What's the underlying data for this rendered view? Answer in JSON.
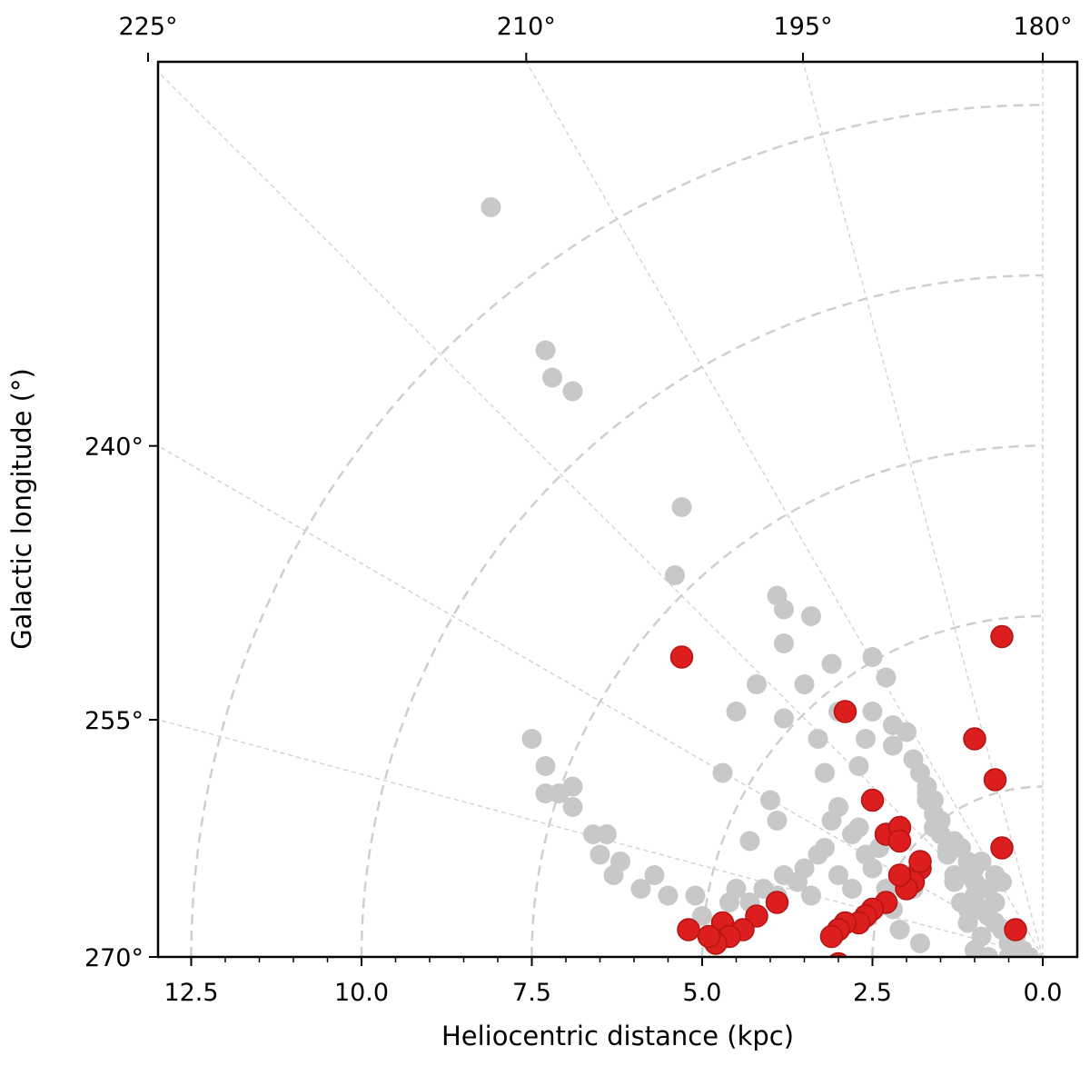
{
  "chart_data": {
    "type": "scatter",
    "title": "",
    "xlabel": "Heliocentric distance (kpc)",
    "ylabel": "Galactic longitude (°)",
    "xlim": [
      13.0,
      -0.6
    ],
    "x_ticks": [
      12.5,
      10.0,
      7.5,
      5.0,
      2.5,
      0.0
    ],
    "x_tick_labels": [
      "12.5",
      "10.0",
      "7.5",
      "5.0",
      "2.5",
      "0.0"
    ],
    "top_ticks": [
      225,
      210,
      195,
      180
    ],
    "top_tick_labels": [
      "225°",
      "210°",
      "195°",
      "180°"
    ],
    "left_ticks": [
      240,
      255,
      270
    ],
    "left_tick_labels": [
      "240°",
      "255°",
      "270°"
    ],
    "radial_gridlines_deg": [
      195,
      210,
      225,
      240,
      255
    ],
    "arc_gridlines_kpc": [
      2.5,
      5.0,
      7.5,
      10.0,
      12.5
    ],
    "minor_tick_step_kpc": 0.5,
    "grid": true,
    "series": [
      {
        "color": "#c8c8c8",
        "points": [
          [
            8.1,
            11.0
          ],
          [
            7.3,
            8.9
          ],
          [
            7.2,
            8.5
          ],
          [
            6.9,
            8.3
          ],
          [
            5.3,
            6.6
          ],
          [
            5.4,
            5.6
          ],
          [
            3.8,
            5.1
          ],
          [
            3.1,
            4.3
          ],
          [
            2.5,
            4.4
          ],
          [
            2.5,
            3.6
          ],
          [
            2.3,
            4.1
          ],
          [
            2.2,
            3.4
          ],
          [
            2.0,
            3.3
          ],
          [
            2.2,
            3.1
          ],
          [
            1.9,
            2.9
          ],
          [
            1.8,
            2.7
          ],
          [
            1.7,
            2.5
          ],
          [
            1.7,
            2.4
          ],
          [
            1.7,
            2.3
          ],
          [
            1.6,
            2.3
          ],
          [
            1.5,
            2.0
          ],
          [
            1.6,
            2.1
          ],
          [
            1.6,
            1.9
          ],
          [
            1.5,
            1.8
          ],
          [
            1.4,
            1.6
          ],
          [
            1.4,
            1.5
          ],
          [
            1.3,
            1.7
          ],
          [
            1.3,
            1.2
          ],
          [
            1.2,
            1.6
          ],
          [
            1.1,
            1.4
          ],
          [
            1.1,
            1.2
          ],
          [
            1.0,
            1.3
          ],
          [
            1.0,
            1.1
          ],
          [
            0.9,
            1.0
          ],
          [
            0.9,
            1.4
          ],
          [
            0.9,
            0.7
          ],
          [
            0.8,
            0.6
          ],
          [
            0.7,
            0.8
          ],
          [
            0.7,
            0.5
          ],
          [
            0.6,
            0.4
          ],
          [
            0.5,
            0.2
          ],
          [
            0.5,
            0.0
          ],
          [
            0.4,
            0.3
          ],
          [
            0.3,
            0.1
          ],
          [
            0.2,
            0.0
          ],
          [
            0.4,
            -0.1
          ],
          [
            0.6,
            1.1
          ],
          [
            0.7,
            1.2
          ],
          [
            0.8,
            1.0
          ],
          [
            1.0,
            0.9
          ],
          [
            1.1,
            0.7
          ],
          [
            1.2,
            0.8
          ],
          [
            1.3,
            1.1
          ],
          [
            1.1,
            0.5
          ],
          [
            0.9,
            0.3
          ],
          [
            1.0,
            0.1
          ],
          [
            0.8,
            0.0
          ],
          [
            0.9,
            -0.1
          ],
          [
            1.0,
            -0.2
          ],
          [
            1.1,
            -0.3
          ],
          [
            0.7,
            -0.2
          ],
          [
            0.5,
            -0.5
          ],
          [
            0.2,
            -0.2
          ],
          [
            1.3,
            -0.5
          ],
          [
            1.8,
            0.2
          ],
          [
            2.1,
            0.4
          ],
          [
            2.2,
            0.7
          ],
          [
            2.3,
            1.0
          ],
          [
            2.1,
            1.2
          ],
          [
            2.5,
            1.3
          ],
          [
            2.6,
            1.5
          ],
          [
            2.4,
            1.6
          ],
          [
            2.7,
            1.9
          ],
          [
            2.8,
            1.8
          ],
          [
            3.0,
            2.2
          ],
          [
            3.1,
            2.0
          ],
          [
            3.2,
            1.6
          ],
          [
            3.0,
            1.2
          ],
          [
            2.8,
            1.0
          ],
          [
            3.3,
            1.5
          ],
          [
            3.5,
            1.3
          ],
          [
            3.6,
            1.1
          ],
          [
            3.4,
            0.9
          ],
          [
            3.8,
            1.2
          ],
          [
            3.9,
            0.9
          ],
          [
            4.1,
            1.0
          ],
          [
            4.3,
            0.8
          ],
          [
            4.5,
            1.0
          ],
          [
            4.6,
            0.8
          ],
          [
            5.0,
            0.6
          ],
          [
            5.1,
            0.9
          ],
          [
            5.5,
            0.9
          ],
          [
            5.7,
            1.2
          ],
          [
            5.9,
            1.0
          ],
          [
            6.2,
            1.4
          ],
          [
            6.3,
            1.2
          ],
          [
            6.5,
            1.5
          ],
          [
            6.4,
            1.8
          ],
          [
            6.6,
            1.8
          ],
          [
            6.9,
            2.2
          ],
          [
            6.9,
            2.5
          ],
          [
            7.1,
            2.4
          ],
          [
            7.3,
            2.4
          ],
          [
            7.3,
            2.8
          ],
          [
            7.5,
            3.2
          ],
          [
            3.9,
            2.0
          ],
          [
            4.0,
            2.3
          ],
          [
            4.3,
            1.7
          ],
          [
            4.7,
            2.7
          ],
          [
            4.5,
            3.6
          ],
          [
            4.2,
            4.0
          ],
          [
            3.8,
            4.6
          ],
          [
            3.9,
            5.3
          ],
          [
            3.4,
            5.0
          ],
          [
            3.5,
            4.0
          ],
          [
            3.8,
            3.5
          ],
          [
            3.3,
            3.2
          ],
          [
            3.0,
            3.6
          ],
          [
            2.7,
            2.8
          ],
          [
            2.6,
            3.2
          ],
          [
            3.2,
            2.7
          ],
          [
            1.9,
            1.0
          ]
        ]
      },
      {
        "color": "#dc1e1e",
        "points": [
          [
            5.3,
            4.4
          ],
          [
            2.9,
            3.6
          ],
          [
            2.5,
            2.3
          ],
          [
            2.3,
            1.8
          ],
          [
            2.1,
            1.9
          ],
          [
            2.1,
            1.7
          ],
          [
            1.8,
            1.3
          ],
          [
            1.8,
            1.4
          ],
          [
            1.9,
            1.1
          ],
          [
            2.0,
            1.0
          ],
          [
            2.1,
            1.2
          ],
          [
            2.3,
            0.8
          ],
          [
            2.5,
            0.7
          ],
          [
            2.6,
            0.6
          ],
          [
            2.7,
            0.5
          ],
          [
            2.9,
            0.5
          ],
          [
            3.0,
            0.4
          ],
          [
            3.1,
            0.3
          ],
          [
            3.9,
            0.8
          ],
          [
            4.2,
            0.6
          ],
          [
            4.4,
            0.4
          ],
          [
            4.7,
            0.5
          ],
          [
            4.6,
            0.3
          ],
          [
            4.8,
            0.2
          ],
          [
            4.9,
            0.3
          ],
          [
            5.2,
            0.4
          ],
          [
            3.0,
            -0.1
          ],
          [
            2.9,
            -0.3
          ],
          [
            0.6,
            4.7
          ],
          [
            1.0,
            3.2
          ],
          [
            0.7,
            2.6
          ],
          [
            0.6,
            1.6
          ],
          [
            0.4,
            0.4
          ]
        ]
      }
    ]
  }
}
